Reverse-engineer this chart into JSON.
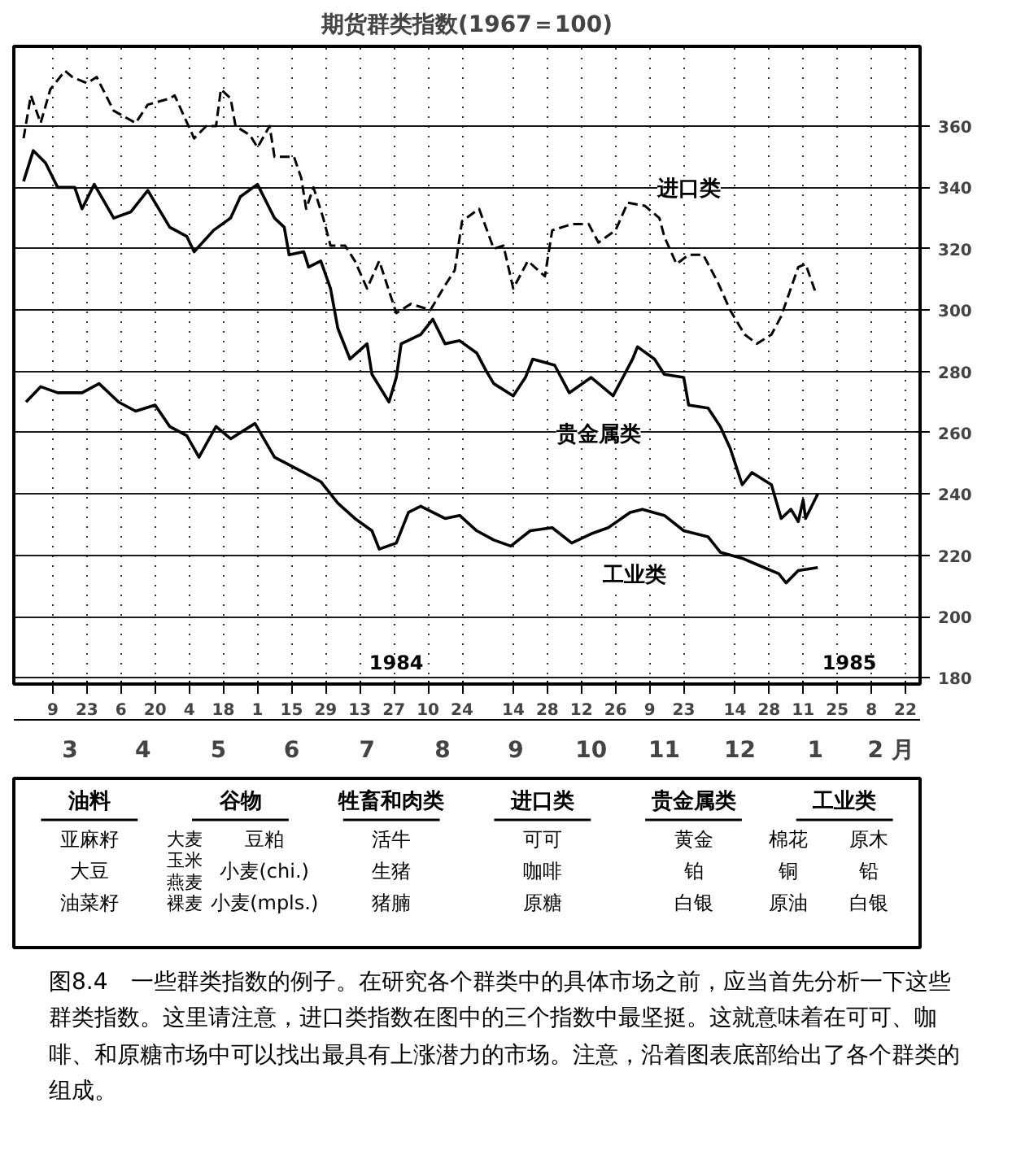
{
  "chart_data": [
    {
      "type": "line",
      "title": "期货群类指数(1967＝100)",
      "xlim": [
        "1984-02-22",
        "1985-02-28"
      ],
      "ylim": [
        178,
        386
      ],
      "yticks": [
        180,
        200,
        220,
        240,
        260,
        280,
        300,
        320,
        340,
        360
      ],
      "xticks": [
        {
          "value": "1984-03-09",
          "label": "9"
        },
        {
          "value": "1984-03-23",
          "label": "23"
        },
        {
          "value": "1984-04-06",
          "label": "6"
        },
        {
          "value": "1984-04-20",
          "label": "20"
        },
        {
          "value": "1984-05-04",
          "label": "4"
        },
        {
          "value": "1984-05-18",
          "label": "18"
        },
        {
          "value": "1984-06-01",
          "label": "1"
        },
        {
          "value": "1984-06-15",
          "label": "15"
        },
        {
          "value": "1984-06-29",
          "label": "29"
        },
        {
          "value": "1984-07-13",
          "label": "13"
        },
        {
          "value": "1984-07-27",
          "label": "27"
        },
        {
          "value": "1984-08-10",
          "label": "10"
        },
        {
          "value": "1984-08-24",
          "label": "24"
        },
        {
          "value": "1984-09-14",
          "label": "14"
        },
        {
          "value": "1984-09-28",
          "label": "28"
        },
        {
          "value": "1984-10-12",
          "label": "12"
        },
        {
          "value": "1984-10-26",
          "label": "26"
        },
        {
          "value": "1984-11-09",
          "label": "9"
        },
        {
          "value": "1984-11-23",
          "label": "23"
        },
        {
          "value": "1984-12-14",
          "label": "14"
        },
        {
          "value": "1984-12-28",
          "label": "28"
        },
        {
          "value": "1985-01-11",
          "label": "11"
        },
        {
          "value": "1985-01-25",
          "label": "25"
        },
        {
          "value": "1985-02-08",
          "label": "8"
        },
        {
          "value": "1985-02-22",
          "label": "22"
        }
      ],
      "grid": true,
      "series": [
        {
          "name": "进口类",
          "color": "#000000",
          "line_style": "dashed",
          "x": [
            "1984-02-26",
            "1984-02-29",
            "1984-03-04",
            "1984-03-08",
            "1984-03-14",
            "1984-03-17",
            "1984-03-23",
            "1984-03-27",
            "1984-04-03",
            "1984-04-12",
            "1984-04-17",
            "1984-04-26",
            "1984-04-28",
            "1984-05-06",
            "1984-05-11",
            "1984-05-15",
            "1984-05-17",
            "1984-05-21",
            "1984-05-23",
            "1984-05-29",
            "1984-06-01",
            "1984-06-06",
            "1984-06-08",
            "1984-06-16",
            "1984-06-19",
            "1984-06-21",
            "1984-06-24",
            "1984-06-28",
            "1984-07-01",
            "1984-07-07",
            "1984-07-11",
            "1984-07-16",
            "1984-07-21",
            "1984-07-28",
            "1984-08-03",
            "1984-08-11",
            "1984-08-17",
            "1984-08-21",
            "1984-08-24",
            "1984-08-31",
            "1984-09-06",
            "1984-09-10",
            "1984-09-14",
            "1984-09-20",
            "1984-09-27",
            "1984-09-30",
            "1984-10-08",
            "1984-10-15",
            "1984-10-19",
            "1984-10-26",
            "1984-10-31",
            "1984-11-07",
            "1984-11-13",
            "1984-11-15",
            "1984-11-20",
            "1984-11-25",
            "1984-12-01",
            "1984-12-07",
            "1984-12-12",
            "1984-12-18",
            "1984-12-23",
            "1984-12-29",
            "1985-01-02",
            "1985-01-09",
            "1985-01-12",
            "1985-01-16"
          ],
          "values": [
            356,
            370,
            361,
            372,
            378,
            376,
            374,
            376,
            365,
            361,
            367,
            369,
            370,
            356,
            360,
            360,
            372,
            369,
            360,
            357,
            353,
            360,
            350,
            350,
            343,
            333,
            340,
            330,
            321,
            321,
            316,
            307,
            316,
            299,
            302,
            300,
            308,
            313,
            329,
            333,
            320,
            321,
            307,
            316,
            311,
            326,
            328,
            328,
            322,
            326,
            335,
            334,
            330,
            324,
            315,
            318,
            318,
            309,
            300,
            292,
            289,
            292,
            298,
            314,
            315,
            306
          ]
        },
        {
          "name": "贵金属类",
          "color": "#000000",
          "line_style": "solid",
          "x": [
            "1984-02-26",
            "1984-03-01",
            "1984-03-06",
            "1984-03-11",
            "1984-03-18",
            "1984-03-21",
            "1984-03-26",
            "1984-04-03",
            "1984-04-10",
            "1984-04-17",
            "1984-04-26",
            "1984-05-03",
            "1984-05-06",
            "1984-05-14",
            "1984-05-21",
            "1984-05-25",
            "1984-06-01",
            "1984-06-08",
            "1984-06-12",
            "1984-06-14",
            "1984-06-20",
            "1984-06-22",
            "1984-06-27",
            "1984-07-01",
            "1984-07-04",
            "1984-07-09",
            "1984-07-16",
            "1984-07-18",
            "1984-07-25",
            "1984-07-28",
            "1984-07-30",
            "1984-08-07",
            "1984-08-12",
            "1984-08-17",
            "1984-08-23",
            "1984-08-30",
            "1984-09-03",
            "1984-09-06",
            "1984-09-14",
            "1984-09-19",
            "1984-09-22",
            "1984-10-01",
            "1984-10-07",
            "1984-10-16",
            "1984-10-25",
            "1984-11-02",
            "1984-11-04",
            "1984-11-11",
            "1984-11-15",
            "1984-11-23",
            "1984-11-25",
            "1984-12-03",
            "1984-12-08",
            "1984-12-12",
            "1984-12-17",
            "1984-12-21",
            "1984-12-29",
            "1985-01-02",
            "1985-01-06",
            "1985-01-09",
            "1985-01-11",
            "1985-01-12",
            "1985-01-17"
          ],
          "values": [
            342,
            352,
            348,
            340,
            340,
            333,
            341,
            330,
            332,
            339,
            327,
            324,
            319,
            326,
            330,
            337,
            341,
            330,
            327,
            318,
            319,
            314,
            316,
            307,
            294,
            284,
            289,
            279,
            270,
            278,
            289,
            292,
            297,
            289,
            290,
            286,
            280,
            276,
            272,
            278,
            284,
            282,
            273,
            278,
            272,
            284,
            288,
            284,
            279,
            278,
            269,
            268,
            262,
            255,
            243,
            247,
            243,
            232,
            235,
            231,
            238,
            232,
            240
          ]
        },
        {
          "name": "工业类",
          "color": "#000000",
          "line_style": "solid",
          "x": [
            "1984-02-27",
            "1984-03-04",
            "1984-03-11",
            "1984-03-21",
            "1984-03-28",
            "1984-04-05",
            "1984-04-12",
            "1984-04-20",
            "1984-04-26",
            "1984-05-03",
            "1984-05-08",
            "1984-05-15",
            "1984-05-21",
            "1984-05-31",
            "1984-06-08",
            "1984-06-20",
            "1984-06-27",
            "1984-07-04",
            "1984-07-11",
            "1984-07-18",
            "1984-07-21",
            "1984-07-28",
            "1984-08-02",
            "1984-08-07",
            "1984-08-17",
            "1984-08-23",
            "1984-08-30",
            "1984-09-06",
            "1984-09-13",
            "1984-09-21",
            "1984-09-30",
            "1984-10-08",
            "1984-10-16",
            "1984-10-23",
            "1984-11-01",
            "1984-11-06",
            "1984-11-15",
            "1984-11-23",
            "1984-12-03",
            "1984-12-08",
            "1984-12-17",
            "1984-12-23",
            "1985-01-01",
            "1985-01-04",
            "1985-01-09",
            "1985-01-17"
          ],
          "values": [
            270,
            275,
            273,
            273,
            276,
            270,
            267,
            269,
            262,
            259,
            252,
            262,
            258,
            263,
            252,
            247,
            244,
            237,
            232,
            228,
            222,
            224,
            234,
            236,
            232,
            233,
            228,
            225,
            223,
            228,
            229,
            224,
            227,
            229,
            234,
            235,
            233,
            228,
            226,
            221,
            219,
            217,
            214,
            211,
            215,
            216
          ]
        }
      ],
      "x2lim": [
        "1984-02-22",
        "1985-02-28"
      ],
      "x2ticks": [
        {
          "value": "1984-03-16",
          "label": "3"
        },
        {
          "value": "1984-04-15",
          "label": "4"
        },
        {
          "value": "1984-05-16",
          "label": "5"
        },
        {
          "value": "1984-06-15",
          "label": "6"
        },
        {
          "value": "1984-07-16",
          "label": "7"
        },
        {
          "value": "1984-08-16",
          "label": "8"
        },
        {
          "value": "1984-09-15",
          "label": "9"
        },
        {
          "value": "1984-10-16",
          "label": "10"
        },
        {
          "value": "1984-11-15",
          "label": "11"
        },
        {
          "value": "1984-12-16",
          "label": "12"
        },
        {
          "value": "1985-01-16",
          "label": "1"
        },
        {
          "value": "1985-02-16",
          "label": "2 月"
        }
      ],
      "annotations": [
        "1984",
        "1985",
        "图8.4　一些群类指数的例子。在研究各个群类中的具体市场之前，应当首先分析一下这些群类指数。这里请注意，进口类指数在图中的三个指数中最坚挺。这就意味着在可可、咖啡、和原糖市场中可以找出最具有上涨潜力的市场。注意，沿着图表底部给出了各个群类的组成。"
      ]
    },
    {
      "type": "other",
      "categories": [
        "油料",
        "谷物",
        "牲畜和肉类",
        "进口类",
        "贵金属类",
        "工业类"
      ],
      "annotations": [
        {
          "text": "亚麻籽",
          "x": "油料"
        },
        {
          "text": "大豆",
          "x": "油料"
        },
        {
          "text": "油菜籽",
          "x": "油料"
        },
        {
          "text": "大麦",
          "x": "谷物"
        },
        {
          "text": "玉米",
          "x": "谷物"
        },
        {
          "text": "燕麦",
          "x": "谷物"
        },
        {
          "text": "裸麦",
          "x": "谷物"
        },
        {
          "text": "豆粕",
          "x": "谷物"
        },
        {
          "text": "小麦(chi.)",
          "x": "谷物"
        },
        {
          "text": "小麦(mpls.)",
          "x": "谷物"
        },
        {
          "text": "活牛",
          "x": "牲畜和肉类"
        },
        {
          "text": "生猪",
          "x": "牲畜和肉类"
        },
        {
          "text": "猪腩",
          "x": "牲畜和肉类"
        },
        {
          "text": "可可",
          "x": "进口类"
        },
        {
          "text": "咖啡",
          "x": "进口类"
        },
        {
          "text": "原糖",
          "x": "进口类"
        },
        {
          "text": "黄金",
          "x": "贵金属类"
        },
        {
          "text": "铂",
          "x": "贵金属类"
        },
        {
          "text": "白银",
          "x": "贵金属类"
        },
        {
          "text": "棉花",
          "x": "工业类"
        },
        {
          "text": "铜",
          "x": "工业类"
        },
        {
          "text": "原油",
          "x": "工业类"
        },
        {
          "text": "原木",
          "x": "工业类"
        },
        {
          "text": "铅",
          "x": "工业类"
        },
        {
          "text": "白银",
          "x": "工业类"
        }
      ]
    }
  ]
}
